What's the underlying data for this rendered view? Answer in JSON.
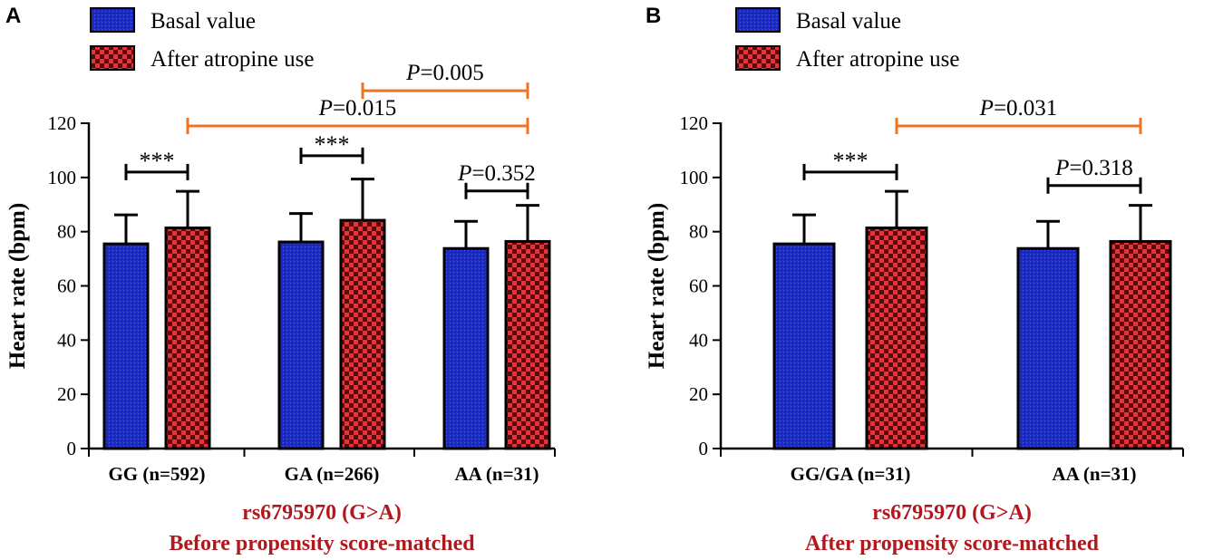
{
  "figure": {
    "colors": {
      "basal": "#1a2bd0",
      "atropine": "#e8323a",
      "pval": "#f07320",
      "xlabel": "#b0181e",
      "axis": "#000000"
    }
  },
  "chart_data": [
    {
      "panel": "A",
      "type": "bar",
      "ylabel": "Heart rate (bpm)",
      "xlabel_lines": [
        "rs6795970 (G>A)",
        "Before propensity score-matched"
      ],
      "ylim": [
        0,
        120
      ],
      "yticks": [
        "0",
        "20",
        "40",
        "60",
        "80",
        "100",
        "120"
      ],
      "categories": [
        "GG (n=592)",
        "GA (n=266)",
        "AA (n=31)"
      ],
      "series": [
        {
          "name": "Basal value",
          "values": [
            75.5,
            76.2,
            73.8
          ],
          "sd": [
            10.7,
            10.5,
            10.0
          ]
        },
        {
          "name": "After atropine use",
          "values": [
            81.4,
            84.2,
            76.4
          ],
          "sd": [
            13.5,
            15.2,
            13.3
          ]
        }
      ],
      "annotations": [
        {
          "label": "***",
          "p": "",
          "kind": "within",
          "from": [
            0,
            0
          ],
          "to": [
            0,
            1
          ],
          "y": 102
        },
        {
          "label": "***",
          "p": "",
          "kind": "within",
          "from": [
            1,
            0
          ],
          "to": [
            1,
            1
          ],
          "y": 108
        },
        {
          "label": "",
          "p": "0.352",
          "kind": "within",
          "from": [
            2,
            0
          ],
          "to": [
            2,
            1
          ],
          "y": 95
        },
        {
          "label": "",
          "p": "0.015",
          "kind": "between",
          "from": [
            0,
            1
          ],
          "to": [
            2,
            1
          ],
          "y": 119
        },
        {
          "label": "",
          "p": "0.005",
          "kind": "between",
          "from": [
            1,
            1
          ],
          "to": [
            2,
            1
          ],
          "y": 132
        }
      ]
    },
    {
      "panel": "B",
      "type": "bar",
      "ylabel": "Heart rate (bpm)",
      "xlabel_lines": [
        "rs6795970 (G>A)",
        "After propensity score-matched"
      ],
      "ylim": [
        0,
        120
      ],
      "yticks": [
        "0",
        "20",
        "40",
        "60",
        "80",
        "100",
        "120"
      ],
      "categories": [
        "GG/GA (n=31)",
        "AA (n=31)"
      ],
      "series": [
        {
          "name": "Basal value",
          "values": [
            75.5,
            73.8
          ],
          "sd": [
            10.7,
            10.0
          ]
        },
        {
          "name": "After atropine use",
          "values": [
            81.4,
            76.4
          ],
          "sd": [
            13.5,
            13.3
          ]
        }
      ],
      "annotations": [
        {
          "label": "***",
          "p": "",
          "kind": "within",
          "from": [
            0,
            0
          ],
          "to": [
            0,
            1
          ],
          "y": 102
        },
        {
          "label": "",
          "p": "0.318",
          "kind": "within",
          "from": [
            1,
            0
          ],
          "to": [
            1,
            1
          ],
          "y": 97
        },
        {
          "label": "",
          "p": "0.031",
          "kind": "between",
          "from": [
            0,
            1
          ],
          "to": [
            1,
            1
          ],
          "y": 119
        }
      ]
    }
  ]
}
